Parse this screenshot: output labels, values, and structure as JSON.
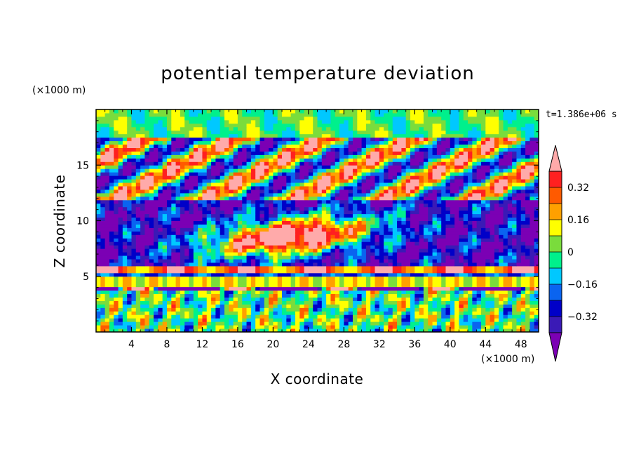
{
  "chart_data": {
    "type": "heatmap",
    "title": "potential temperature deviation",
    "xlabel": "X coordinate",
    "ylabel": "Z coordinate",
    "x_unit": "(×1000 m)",
    "y_unit": "(×1000 m)",
    "time_label": "t=1.386e+06 s",
    "xlim": [
      0,
      50
    ],
    "ylim": [
      0,
      20
    ],
    "x_ticks": [
      4,
      8,
      12,
      16,
      20,
      24,
      28,
      32,
      36,
      40,
      44,
      48
    ],
    "x_tick_labels": [
      "4",
      "8",
      "12",
      "16",
      "20",
      "24",
      "28",
      "32",
      "36",
      "40",
      "44",
      "48"
    ],
    "y_ticks": [
      5,
      10,
      15
    ],
    "y_tick_labels": [
      "5",
      "10",
      "15"
    ],
    "colorbar": {
      "levels": [
        -0.4,
        -0.32,
        -0.24,
        -0.16,
        -0.08,
        0,
        0.08,
        0.16,
        0.24,
        0.32,
        0.4
      ],
      "labeled_levels": [
        0.32,
        0.16,
        0,
        -0.16,
        -0.32
      ],
      "labels": [
        "0.32",
        "0.16",
        "0",
        "−0.16",
        "−0.32"
      ],
      "colors": [
        "#7b00b4",
        "#3a1ab6",
        "#0000c8",
        "#0a64f0",
        "#00c8ff",
        "#00f08c",
        "#7adc3c",
        "#ffff00",
        "#ffa000",
        "#ff5a00",
        "#ff2020",
        "#ffaaaa"
      ],
      "extend": "both"
    }
  }
}
